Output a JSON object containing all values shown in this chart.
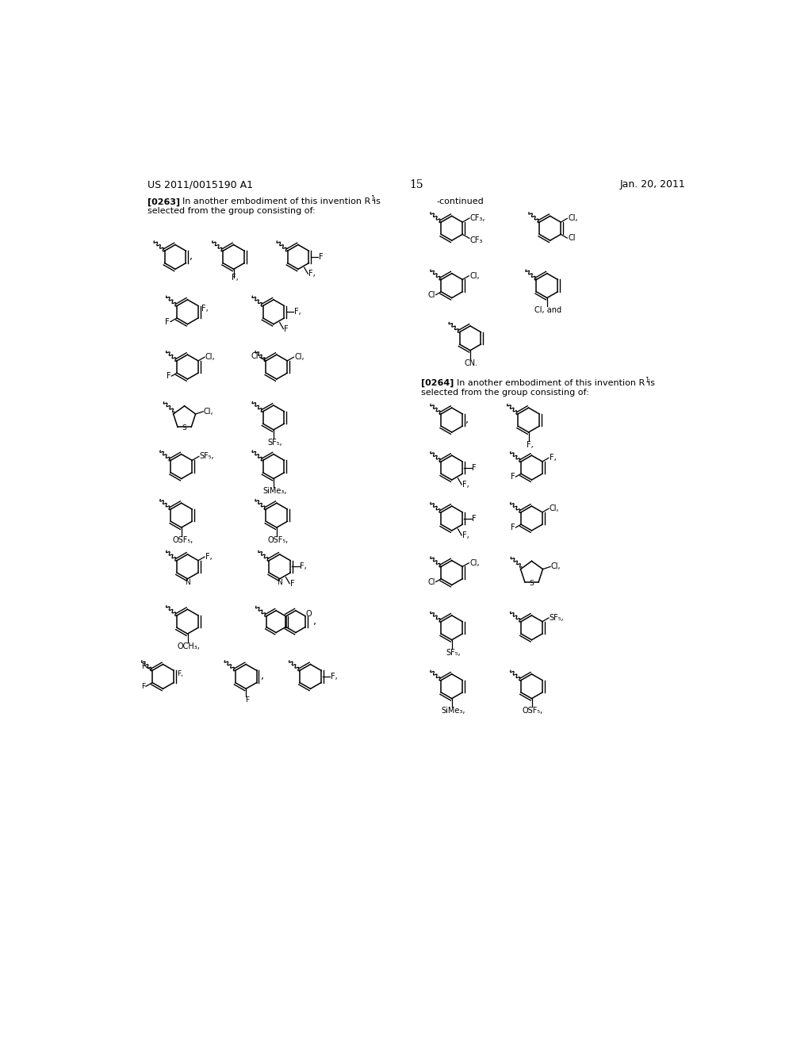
{
  "background_color": "#ffffff",
  "header_left": "US 2011/0015190 A1",
  "header_right": "Jan. 20, 2011",
  "page_number": "15",
  "continued_label": "-continued",
  "p0263_label": "[0263]",
  "p0263_text1": "In another embodiment of this invention R",
  "p0263_text2": "is",
  "p0263_text3": "selected from the group consisting of:",
  "p0264_label": "[0264]",
  "p0264_text1": "In another embodiment of this invention R",
  "p0264_text2": "is",
  "p0264_text3": "selected from the group consisting of:"
}
